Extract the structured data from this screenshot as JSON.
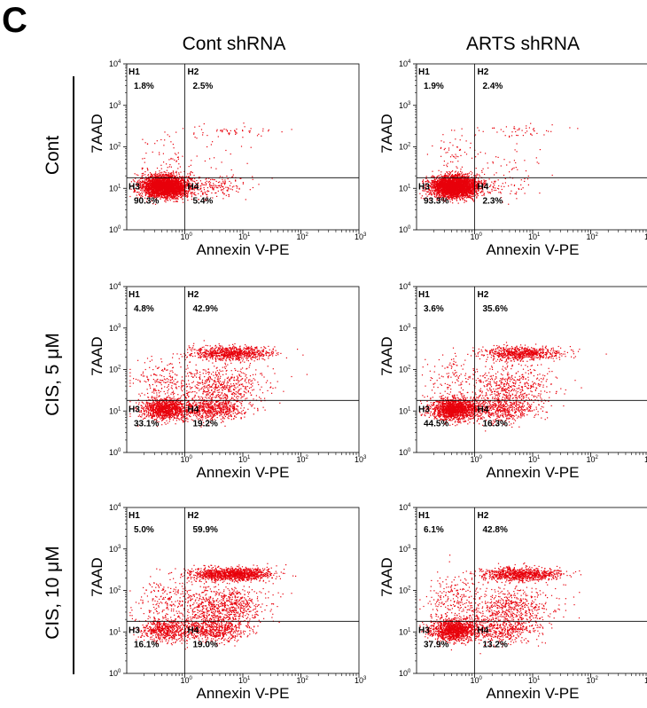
{
  "panel_label": "C",
  "columns": [
    "Cont shRNA",
    "ARTS shRNA"
  ],
  "rows": [
    "Cont",
    "CIS, 5 μM",
    "CIS, 10 μM"
  ],
  "chart_data": [
    {
      "type": "scatter",
      "row": 0,
      "col": 0,
      "xlabel": "Annexin V-PE",
      "ylabel": "7AAD",
      "log_scale": true,
      "xlim": [
        0.1,
        1000
      ],
      "ylim": [
        1,
        10000
      ],
      "quadrants": [
        {
          "name": "H1",
          "percent": "1.8%"
        },
        {
          "name": "H2",
          "percent": "2.5%"
        },
        {
          "name": "H3",
          "percent": "90.3%"
        },
        {
          "name": "H4",
          "percent": "5.4%"
        }
      ]
    },
    {
      "type": "scatter",
      "row": 0,
      "col": 1,
      "xlabel": "Annexin V-PE",
      "ylabel": "7AAD",
      "log_scale": true,
      "xlim": [
        0.1,
        1000
      ],
      "ylim": [
        1,
        10000
      ],
      "quadrants": [
        {
          "name": "H1",
          "percent": "1.9%"
        },
        {
          "name": "H2",
          "percent": "2.4%"
        },
        {
          "name": "H3",
          "percent": "93.3%"
        },
        {
          "name": "H4",
          "percent": "2.3%"
        }
      ]
    },
    {
      "type": "scatter",
      "row": 1,
      "col": 0,
      "xlabel": "Annexin V-PE",
      "ylabel": "7AAD",
      "log_scale": true,
      "xlim": [
        0.1,
        1000
      ],
      "ylim": [
        1,
        10000
      ],
      "quadrants": [
        {
          "name": "H1",
          "percent": "4.8%"
        },
        {
          "name": "H2",
          "percent": "42.9%"
        },
        {
          "name": "H3",
          "percent": "33.1%"
        },
        {
          "name": "H4",
          "percent": "19.2%"
        }
      ]
    },
    {
      "type": "scatter",
      "row": 1,
      "col": 1,
      "xlabel": "Annexin V-PE",
      "ylabel": "7AAD",
      "log_scale": true,
      "xlim": [
        0.1,
        1000
      ],
      "ylim": [
        1,
        10000
      ],
      "quadrants": [
        {
          "name": "H1",
          "percent": "3.6%"
        },
        {
          "name": "H2",
          "percent": "35.6%"
        },
        {
          "name": "H3",
          "percent": "44.5%"
        },
        {
          "name": "H4",
          "percent": "16.3%"
        }
      ]
    },
    {
      "type": "scatter",
      "row": 2,
      "col": 0,
      "xlabel": "Annexin V-PE",
      "ylabel": "7AAD",
      "log_scale": true,
      "xlim": [
        0.1,
        1000
      ],
      "ylim": [
        1,
        10000
      ],
      "quadrants": [
        {
          "name": "H1",
          "percent": "5.0%"
        },
        {
          "name": "H2",
          "percent": "59.9%"
        },
        {
          "name": "H3",
          "percent": "16.1%"
        },
        {
          "name": "H4",
          "percent": "19.0%"
        }
      ]
    },
    {
      "type": "scatter",
      "row": 2,
      "col": 1,
      "xlabel": "Annexin V-PE",
      "ylabel": "7AAD",
      "log_scale": true,
      "xlim": [
        0.1,
        1000
      ],
      "ylim": [
        1,
        10000
      ],
      "quadrants": [
        {
          "name": "H1",
          "percent": "6.1%"
        },
        {
          "name": "H2",
          "percent": "42.8%"
        },
        {
          "name": "H3",
          "percent": "37.9%"
        },
        {
          "name": "H4",
          "percent": "13.2%"
        }
      ]
    }
  ],
  "gate": {
    "x": 1,
    "y": 18
  },
  "tick_base": "10",
  "x_tick_exponents": [
    "0",
    "1",
    "2",
    "3"
  ],
  "y_tick_exponents": [
    "0",
    "1",
    "2",
    "3",
    "4"
  ],
  "colors": {
    "dots": "#e8000b",
    "axes": "#000000"
  }
}
